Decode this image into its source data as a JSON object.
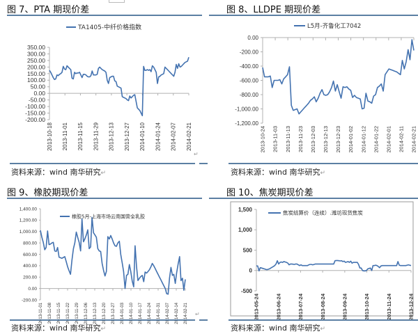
{
  "figures": [
    {
      "title": "图 7、PTA 期现价差"
    },
    {
      "title": "图 8、LLDPE 期现价差"
    },
    {
      "title": "图 9、橡胶期现价差"
    },
    {
      "title": "图 10、焦炭期现价差"
    }
  ],
  "source_label": "资料来源：wind  南华研究",
  "return_mark": "↵",
  "colors": {
    "line": "#4372b0",
    "rule": "#5b7fa3",
    "axis": "#b0b0b0"
  },
  "chart_data": [
    {
      "type": "line",
      "title": "图 7、PTA 期现价差",
      "legend": [
        "TA1405-中纤价格指数"
      ],
      "legend_position": "top",
      "ylim": [
        -200,
        350
      ],
      "yticks": [
        350,
        300,
        250,
        200,
        150,
        100,
        50,
        0,
        -50,
        -100,
        -150,
        -200
      ],
      "ytick_labels": [
        "350.00",
        "300.00",
        "250.00",
        "200.00",
        "150.00",
        "100.00",
        "50.00",
        "0.00",
        "-50.00",
        "-100.00",
        "-150.00",
        "-200.00"
      ],
      "xtick_labels": [
        "2013-10-18",
        "2013-11-01",
        "2013-11-15",
        "2013-11-29",
        "2013-12-13",
        "2013-12-27",
        "2014-01-10",
        "2014-01-24",
        "2014-02-07",
        "2014-02-21"
      ],
      "x_axis_at_zero": true,
      "series": [
        {
          "name": "TA1405-中纤价格指数",
          "values": [
            175,
            160,
            140,
            120,
            105,
            110,
            140,
            135,
            145,
            150,
            160,
            205,
            185,
            180,
            210,
            200,
            190,
            180,
            115,
            110,
            160,
            150,
            155,
            155,
            160,
            140,
            120,
            145,
            145,
            140,
            130,
            125,
            125,
            135,
            170,
            140,
            140,
            140,
            145,
            190,
            200,
            190,
            180,
            175,
            170,
            160,
            100,
            75,
            120,
            125,
            130,
            130,
            95,
            90,
            55,
            50,
            45,
            40,
            -25,
            -30,
            -35,
            -40,
            -50,
            -55,
            -20,
            -35,
            -25,
            -15,
            -10,
            -60,
            -110,
            -120,
            -130,
            -150,
            -170,
            205,
            175,
            175,
            180,
            175,
            180,
            165,
            210,
            200,
            180,
            160,
            75,
            125,
            130,
            140,
            145,
            150,
            200,
            190,
            180,
            170,
            160,
            150,
            140,
            130,
            160,
            220,
            190,
            225,
            200,
            205,
            215,
            225,
            235,
            240,
            245,
            275
          ]
        }
      ],
      "grid": false
    },
    {
      "type": "line",
      "title": "图 8、LLDPE 期现价差",
      "legend": [
        "L5月-齐鲁化工7042"
      ],
      "legend_position": "top",
      "ylim": [
        -1200,
        0
      ],
      "yticks": [
        0,
        -200,
        -400,
        -600,
        -800,
        -1000,
        -1200
      ],
      "ytick_labels": [
        "0.00",
        "-200.00",
        "-400.00",
        "-600.00",
        "-800.00",
        "-1,000.00",
        "-1,200.00"
      ],
      "xtick_labels": [
        "2013-10-24",
        "2013-11-03",
        "2013-11-13",
        "2013-11-23",
        "2013-12-03",
        "2013-12-13",
        "2013-12-23",
        "2014-01-02",
        "2014-01-12",
        "2014-01-22",
        "2014-02-01",
        "2014-02-11",
        "2014-02-21"
      ],
      "series": [
        {
          "name": "L5月-齐鲁化工7042",
          "values": [
            -420,
            -550,
            -550,
            -550,
            -540,
            -700,
            -600,
            -600,
            -600,
            -590,
            -650,
            -580,
            -550,
            -520,
            -410,
            -950,
            -1020,
            -1010,
            -1000,
            -1070,
            -1040,
            -1010,
            -980,
            -950,
            -920,
            -880,
            -860,
            -830,
            -900,
            -850,
            -780,
            -730,
            -800,
            -810,
            -800,
            -760,
            -700,
            -610,
            -750,
            -660,
            -760,
            -850,
            -690,
            -700,
            -690,
            -720,
            -740,
            -840,
            -810,
            -840,
            -850,
            -860,
            -1000,
            -990,
            -780,
            -890,
            -900,
            -920,
            -820,
            -800,
            -700,
            -680,
            -650,
            -750,
            -520,
            -480,
            -440,
            -450,
            -460,
            -470,
            -480,
            -500,
            -520,
            -320,
            -440,
            -340,
            -170,
            -310,
            -30,
            -180
          ]
        }
      ],
      "grid": false
    },
    {
      "type": "line",
      "title": "图 9、橡胶期现价差",
      "legend": [
        "橡胶5月-上海市场云南国营全乳胶"
      ],
      "legend_position": "top-center-inside",
      "ylim": [
        -200,
        1400
      ],
      "yticks": [
        1400,
        1200,
        1000,
        800,
        600,
        400,
        200,
        0,
        -200
      ],
      "ytick_labels": [
        "1,400.00",
        "1,200.00",
        "1,000.00",
        "800.00",
        "600.00",
        "400.00",
        "200.00",
        "0.00",
        "-200.00"
      ],
      "xtick_labels": [
        "2013-11-01",
        "2013-11-08",
        "2013-11-15",
        "2013-11-22",
        "2013-11-29",
        "2013-12-06",
        "2013-12-13",
        "2013-12-20",
        "2013-12-27",
        "2014-01-03",
        "2014-01-10",
        "2014-01-17",
        "2014-01-24",
        "2014-01-31",
        "2014-02-07",
        "2014-02-14",
        "2014-02-21"
      ],
      "series": [
        {
          "name": "橡胶5月-上海市场云南国营全乳胶",
          "values": [
            1020,
            900,
            810,
            680,
            720,
            1010,
            770,
            780,
            800,
            810,
            660,
            650,
            720,
            550,
            540,
            530,
            545,
            560,
            470,
            380,
            310,
            250,
            500,
            700,
            800,
            990,
            900,
            810,
            660,
            1220,
            820,
            870,
            940,
            1030,
            700,
            730,
            1250,
            980,
            940,
            900,
            700,
            660,
            650,
            440,
            320,
            220,
            300,
            910,
            870,
            930,
            870,
            800,
            750,
            740,
            800,
            830,
            600,
            450,
            300,
            0,
            230,
            250,
            420,
            300,
            130,
            30,
            750,
            380,
            140,
            180,
            210,
            230,
            120,
            290,
            270,
            300,
            330,
            380,
            440,
            400,
            350,
            300,
            250,
            200,
            150,
            100,
            50,
            0,
            -90,
            -100,
            180,
            370,
            230,
            250,
            90,
            280,
            430,
            560,
            140,
            180,
            -30,
            160
          ]
        }
      ],
      "grid": false
    },
    {
      "type": "line",
      "title": "图 10、焦炭期现价差",
      "legend": [
        "焦炭结算价（连续）.潍坊现货焦炭"
      ],
      "legend_position": "top-right",
      "ylim": [
        -500,
        1500
      ],
      "yticks": [
        1500,
        1000,
        500,
        0,
        -500
      ],
      "ytick_labels": [
        "1,500",
        "1,000",
        "500",
        "0",
        "-500"
      ],
      "xtick_labels": [
        "2013-05-24",
        "2013-06-24",
        "2013-07-24",
        "2013-08-24",
        "2013-09-24",
        "2013-10-24",
        "2013-11-24",
        "2013-12-24"
      ],
      "series": [
        {
          "name": "焦炭结算价（连续）.潍坊现货焦炭",
          "values": [
            115,
            110,
            -10,
            70,
            60,
            50,
            40,
            30,
            20,
            30,
            40,
            60,
            80,
            100,
            120,
            160,
            240,
            160,
            200,
            210,
            200,
            220,
            210,
            200,
            180,
            140,
            160,
            160,
            155,
            150,
            160,
            160,
            140,
            120,
            140,
            120,
            120,
            120,
            120,
            120,
            140,
            150,
            150,
            140,
            150,
            160,
            160,
            160,
            160,
            160,
            160,
            160,
            160,
            160,
            160,
            160,
            160,
            160,
            160,
            160,
            240,
            245,
            245,
            240,
            235,
            240,
            220,
            230,
            200,
            210,
            220,
            200,
            230,
            180,
            200,
            200,
            200,
            200,
            150,
            60,
            60,
            0,
            -10,
            -10,
            0,
            40,
            50,
            60,
            0,
            120,
            120,
            130,
            120,
            100,
            70,
            110,
            120,
            120,
            120,
            120,
            120,
            120,
            120,
            120,
            120,
            120,
            120,
            120,
            220,
            130,
            120,
            120,
            120,
            120,
            120,
            130,
            140,
            130,
            120
          ]
        }
      ],
      "grid": false,
      "bordered": true
    }
  ]
}
